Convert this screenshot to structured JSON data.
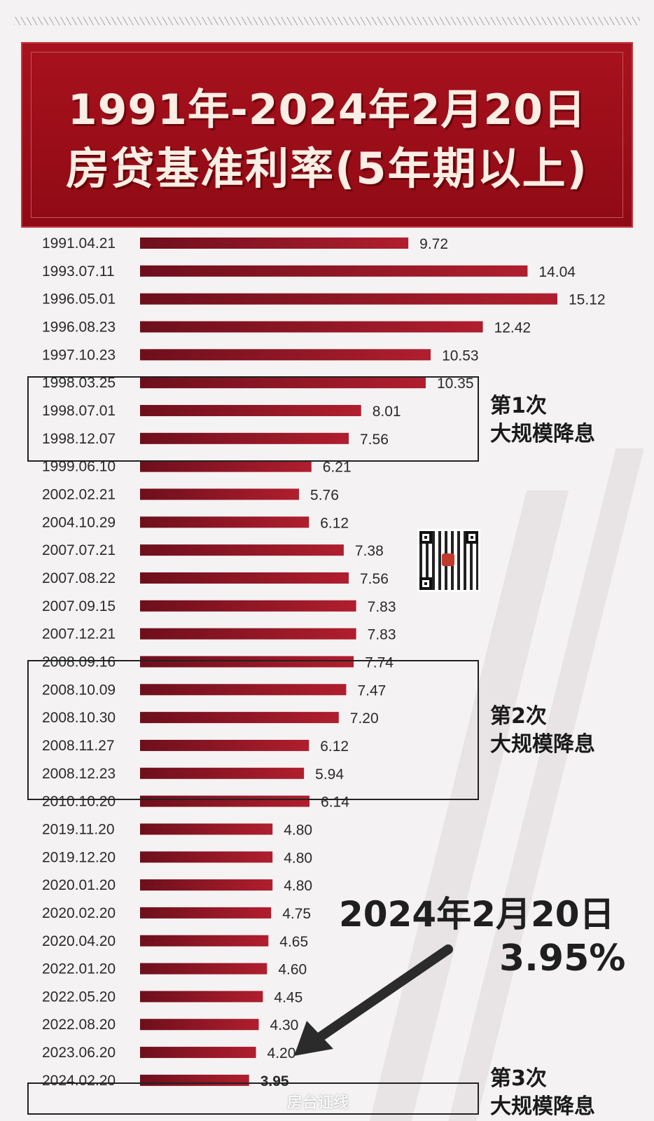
{
  "title": {
    "line1": "1991年-2024年2月20日",
    "line2": "房贷基准利率(5年期以上)"
  },
  "colors": {
    "title_bg": "#9b0e18",
    "bar": "#a11a2b",
    "bar_dark": "#6e0f1c",
    "text": "#2a2a2a",
    "box_border": "#222222"
  },
  "chart_data": {
    "type": "bar",
    "orientation": "horizontal",
    "title": "1991年-2024年2月20日 房贷基准利率(5年期以上)",
    "categories": [
      "1991.04.21",
      "1993.07.11",
      "1996.05.01",
      "1996.08.23",
      "1997.10.23",
      "1998.03.25",
      "1998.07.01",
      "1998.12.07",
      "1999.06.10",
      "2002.02.21",
      "2004.10.29",
      "2007.07.21",
      "2007.08.22",
      "2007.09.15",
      "2007.12.21",
      "2008.09.16",
      "2008.10.09",
      "2008.10.30",
      "2008.11.27",
      "2008.12.23",
      "2010.10.20",
      "2019.11.20",
      "2019.12.20",
      "2020.01.20",
      "2020.02.20",
      "2020.04.20",
      "2022.01.20",
      "2022.05.20",
      "2022.08.20",
      "2023.06.20",
      "2024.02.20"
    ],
    "values": [
      9.72,
      14.04,
      15.12,
      12.42,
      10.53,
      10.35,
      8.01,
      7.56,
      6.21,
      5.76,
      6.12,
      7.38,
      7.56,
      7.83,
      7.83,
      7.74,
      7.47,
      7.2,
      6.12,
      5.94,
      6.14,
      4.8,
      4.8,
      4.8,
      4.75,
      4.65,
      4.6,
      4.45,
      4.3,
      4.2,
      3.95
    ],
    "value_labels": [
      "9.72",
      "14.04",
      "15.12",
      "12.42",
      "10.53",
      "10.35",
      "8.01",
      "7.56",
      "6.21",
      "5.76",
      "6.12",
      "7.38",
      "7.56",
      "7.83",
      "7.83",
      "7.74",
      "7.47",
      "7.20",
      "6.12",
      "5.94",
      "6.14",
      "4.80",
      "4.80",
      "4.80",
      "4.75",
      "4.65",
      "4.60",
      "4.45",
      "4.30",
      "4.20",
      "3.95"
    ],
    "xlim": [
      0,
      15.12
    ],
    "grid": false,
    "legend": "none",
    "highlight_groups": [
      {
        "label": [
          "第1次",
          "大规模降息"
        ],
        "from": 5,
        "to": 7
      },
      {
        "label": [
          "第2次",
          "大规模降息"
        ],
        "from": 15,
        "to": 19
      },
      {
        "label": [
          "第3次",
          "大规模降息"
        ],
        "from": 30,
        "to": 30
      }
    ]
  },
  "callout": {
    "date": "2024年2月20日",
    "rate": "3.95%"
  },
  "groups": [
    {
      "line1": "第1次",
      "line2": "大规模降息"
    },
    {
      "line1": "第2次",
      "line2": "大规模降息"
    },
    {
      "line1": "第3次",
      "line2": "大规模降息"
    }
  ],
  "qr_icon": "qr-code-icon",
  "watermark_text": "房台证线"
}
